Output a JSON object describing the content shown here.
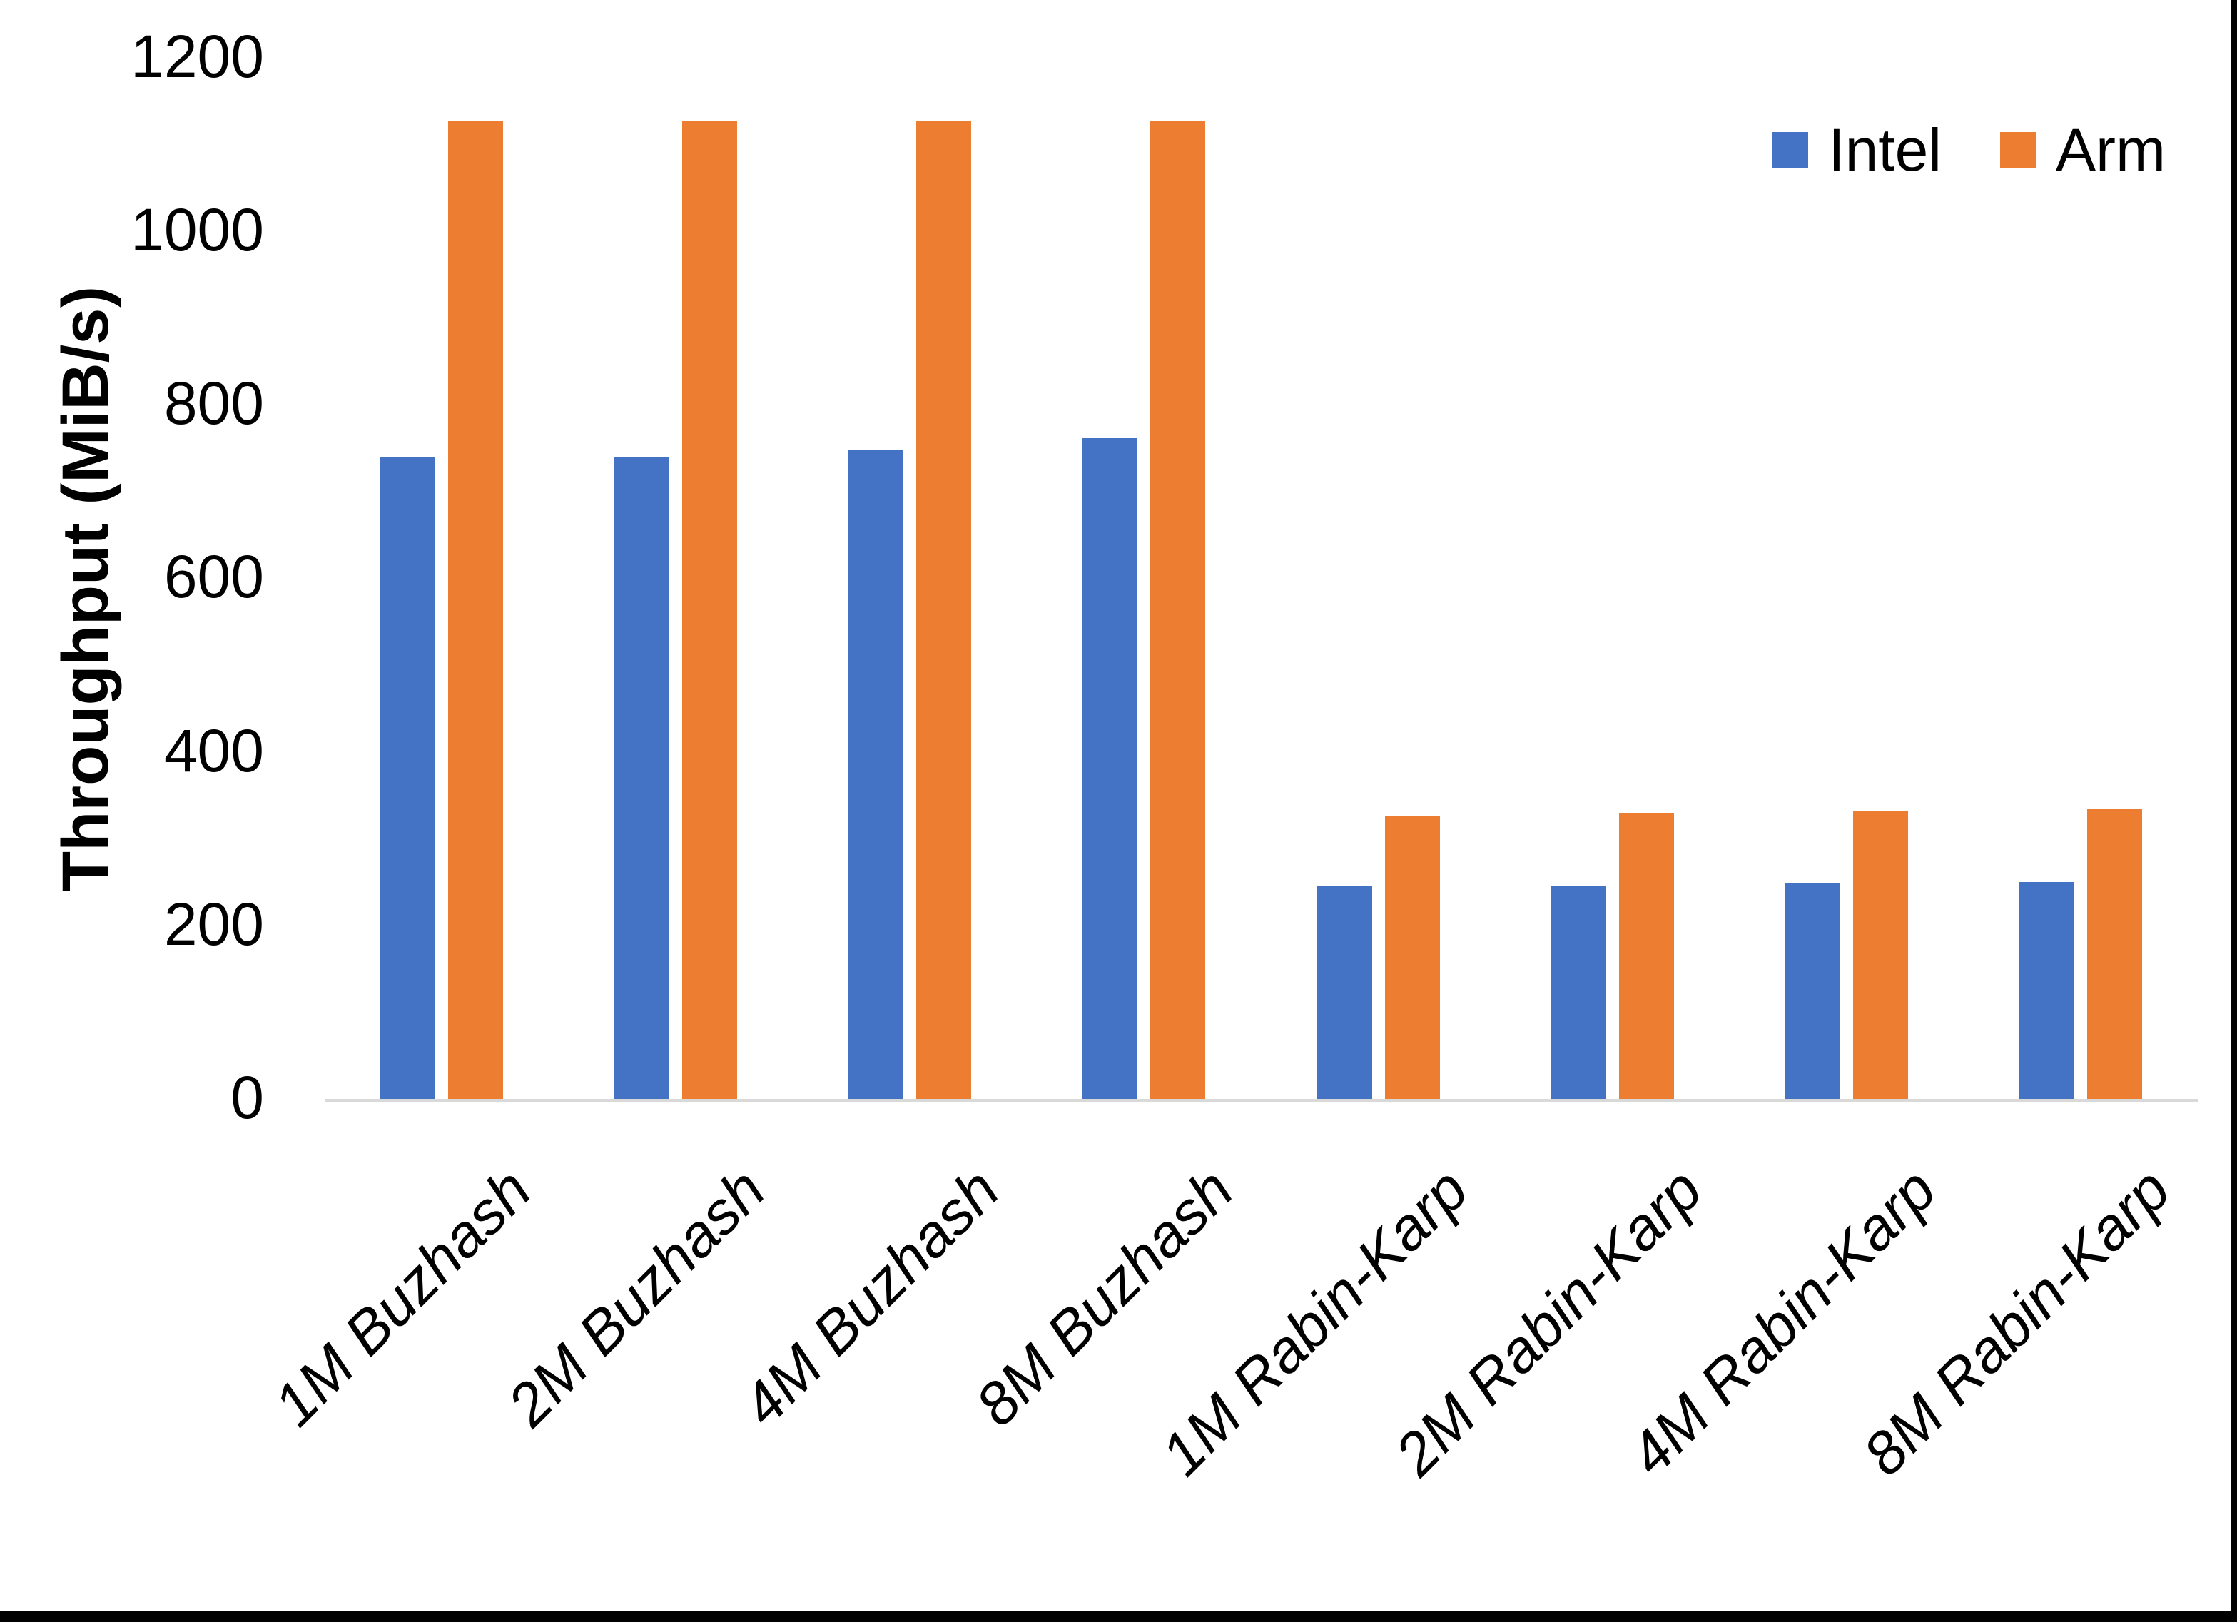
{
  "chart_data": {
    "type": "bar",
    "title": "",
    "categories": [
      "1M Buzhash",
      "2M Buzhash",
      "4M Buzhash",
      "8M Buzhash",
      "1M Rabin-Karp",
      "2M Rabin-Karp",
      "4M Rabin-Karp",
      "8M Rabin-Karp"
    ],
    "series": [
      {
        "name": "Intel",
        "color": "#4472C4",
        "values": [
          740,
          740,
          748,
          762,
          245,
          245,
          248,
          250
        ]
      },
      {
        "name": "Arm",
        "color": "#ED7D31",
        "values": [
          1128,
          1128,
          1128,
          1128,
          326,
          329,
          332,
          335
        ]
      }
    ],
    "xlabel": "",
    "ylabel": "Throughput (MiB/s)",
    "ylim": [
      0,
      1200
    ],
    "yticks": [
      0,
      200,
      400,
      600,
      800,
      1000,
      1200
    ],
    "grid": false,
    "legend_position": "top-right",
    "axis_line_color": "#d9d9d9",
    "tick_label_color": "#000000"
  }
}
